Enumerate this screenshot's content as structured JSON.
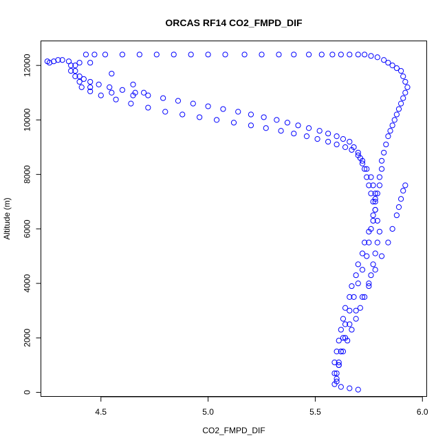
{
  "chart_data": {
    "type": "scatter",
    "title": "ORCAS RF14 CO2_FMPD_DIF",
    "xlabel": "CO2_FMPD_DIF",
    "ylabel": "Altitude (m)",
    "xlim": [
      4.22,
      6.02
    ],
    "ylim": [
      -150,
      12900
    ],
    "xticks": [
      4.5,
      5.0,
      5.5,
      6.0
    ],
    "xtick_labels": [
      "4.5",
      "5.0",
      "5.5",
      "6.0"
    ],
    "yticks": [
      0,
      2000,
      4000,
      6000,
      8000,
      10000,
      12000
    ],
    "ytick_labels": [
      "0",
      "2000",
      "4000",
      "6000",
      "8000",
      "10000",
      "12000"
    ],
    "grid": false,
    "legend": "none",
    "marker": "open-circle",
    "color": "#0000ff",
    "series": [
      {
        "x": [
          5.7,
          5.66,
          5.62,
          5.6,
          5.59,
          5.59,
          5.6,
          5.61,
          5.62,
          5.63,
          5.64,
          5.66,
          5.67,
          5.69,
          5.7,
          5.72,
          5.73,
          5.75,
          5.77,
          5.78,
          5.78,
          5.79,
          5.8,
          5.8,
          5.81,
          5.81,
          5.82,
          5.83,
          5.84,
          5.85,
          5.86,
          5.87,
          5.88,
          5.89,
          5.9,
          5.91,
          5.92,
          5.93,
          5.92,
          5.91,
          5.9,
          5.88,
          5.86,
          5.84,
          5.82,
          5.79,
          5.76,
          5.73,
          5.7,
          5.66,
          5.62,
          5.58,
          5.53,
          5.47,
          5.4,
          5.33,
          5.25,
          5.17,
          5.08,
          5.0,
          4.92,
          4.84,
          4.76,
          4.68,
          4.6,
          4.52,
          4.47,
          4.43,
          4.45,
          4.55,
          4.65,
          4.7,
          4.65,
          4.55,
          4.45,
          4.4,
          4.38,
          4.36,
          4.38,
          4.4,
          4.35,
          4.32,
          4.3,
          4.28,
          4.26,
          4.25
        ],
        "y": [
          100,
          150,
          200,
          400,
          700,
          1100,
          1500,
          1900,
          2300,
          2700,
          3100,
          3500,
          3900,
          4300,
          4700,
          5100,
          5500,
          5900,
          6300,
          6700,
          7100,
          7300,
          7600,
          7900,
          8200,
          8500,
          8800,
          9100,
          9400,
          9600,
          9800,
          10000,
          10200,
          10400,
          10600,
          10800,
          11000,
          11200,
          11400,
          11600,
          11800,
          11900,
          12000,
          12100,
          12200,
          12300,
          12350,
          12400,
          12400,
          12400,
          12400,
          12400,
          12400,
          12400,
          12400,
          12400,
          12400,
          12400,
          12400,
          12400,
          12400,
          12400,
          12400,
          12400,
          12400,
          12400,
          12400,
          12400,
          12100,
          11700,
          11300,
          11000,
          10900,
          11000,
          11200,
          11400,
          11600,
          11800,
          12000,
          12100,
          12150,
          12200,
          12200,
          12150,
          12100,
          12150
        ]
      },
      {
        "x": [
          5.59,
          5.6,
          5.61,
          5.63,
          5.65,
          5.67,
          5.69,
          5.71,
          5.73,
          5.75,
          5.76,
          5.77,
          5.78,
          5.79,
          5.8,
          5.79,
          5.78,
          5.77,
          5.76,
          5.75,
          5.74,
          5.73,
          5.72,
          5.71,
          5.7,
          5.68,
          5.66,
          5.63,
          5.6,
          5.56,
          5.52,
          5.47,
          5.42,
          5.37,
          5.32,
          5.26,
          5.2,
          5.14,
          5.07,
          5.0,
          4.93,
          4.86,
          4.79,
          4.72,
          4.66,
          4.6,
          4.54,
          4.49,
          4.45,
          4.42,
          4.4,
          4.38,
          4.36
        ],
        "y": [
          300,
          700,
          1100,
          1500,
          1900,
          2300,
          2700,
          3100,
          3500,
          3900,
          4300,
          4700,
          5100,
          5500,
          5900,
          6300,
          6700,
          7000,
          7300,
          7600,
          7900,
          8200,
          8400,
          8600,
          8800,
          9000,
          9200,
          9300,
          9400,
          9500,
          9600,
          9700,
          9800,
          9900,
          10000,
          10100,
          10200,
          10300,
          10400,
          10500,
          10600,
          10700,
          10800,
          10900,
          11000,
          11100,
          11200,
          11300,
          11400,
          11500,
          11600,
          11800,
          12000
        ]
      },
      {
        "x": [
          5.6,
          5.61,
          5.62,
          5.63,
          5.64,
          5.66,
          5.68,
          5.7,
          5.72,
          5.74,
          5.75,
          5.76,
          5.77,
          5.78,
          5.78,
          5.77,
          5.76,
          5.74,
          5.72,
          5.7,
          5.67,
          5.64,
          5.6,
          5.56,
          5.51,
          5.46,
          5.4,
          5.34,
          5.27,
          5.2,
          5.12,
          5.04,
          4.96,
          4.88,
          4.8,
          4.72,
          4.64,
          4.57,
          4.5,
          4.45,
          4.41
        ],
        "y": [
          500,
          1000,
          1500,
          2000,
          2500,
          3000,
          3500,
          4000,
          4500,
          5000,
          5500,
          6000,
          6500,
          7000,
          7300,
          7600,
          7900,
          8200,
          8500,
          8700,
          8900,
          9000,
          9100,
          9200,
          9300,
          9400,
          9500,
          9600,
          9700,
          9800,
          9900,
          10000,
          10100,
          10200,
          10300,
          10450,
          10600,
          10750,
          10900,
          11050,
          11200
        ]
      },
      {
        "x": [
          5.61,
          5.62,
          5.64,
          5.66,
          5.69,
          5.72,
          5.75,
          5.78,
          5.81,
          5.84,
          5.86,
          5.88,
          5.89,
          5.9,
          5.91,
          5.92
        ],
        "y": [
          1000,
          1500,
          2000,
          2500,
          3000,
          3500,
          4000,
          4500,
          5000,
          5500,
          6000,
          6500,
          6800,
          7100,
          7400,
          7600
        ]
      }
    ]
  }
}
